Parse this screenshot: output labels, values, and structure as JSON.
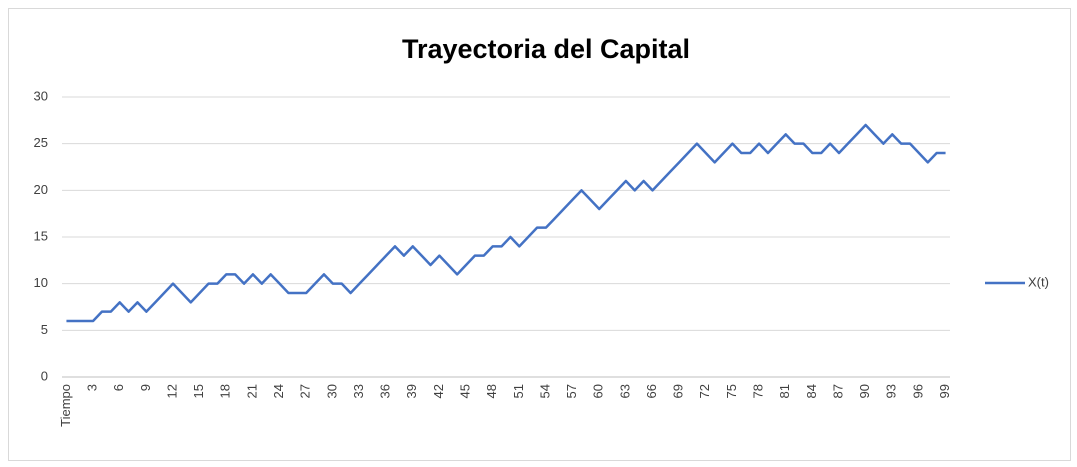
{
  "chart_data": {
    "type": "line",
    "title": "Trayectoria del Capital",
    "categories": [
      "Tiempo",
      null,
      null,
      3,
      null,
      null,
      6,
      null,
      null,
      9,
      null,
      null,
      12,
      null,
      null,
      15,
      null,
      null,
      18,
      null,
      null,
      21,
      null,
      null,
      24,
      null,
      null,
      27,
      null,
      null,
      30,
      null,
      null,
      33,
      null,
      null,
      36,
      null,
      null,
      39,
      null,
      null,
      42,
      null,
      null,
      45,
      null,
      null,
      48,
      null,
      null,
      51,
      null,
      null,
      54,
      null,
      null,
      57,
      null,
      null,
      60,
      null,
      null,
      63,
      null,
      null,
      66,
      null,
      null,
      69,
      null,
      null,
      72,
      null,
      null,
      75,
      null,
      null,
      78,
      null,
      null,
      81,
      null,
      null,
      84,
      null,
      null,
      87,
      null,
      null,
      90,
      null,
      null,
      93,
      null,
      null,
      96,
      null,
      null,
      99
    ],
    "series": [
      {
        "name": "X(t)",
        "color": "#4472c4",
        "values": [
          6,
          6,
          6,
          6,
          7,
          7,
          8,
          7,
          8,
          7,
          8,
          9,
          10,
          9,
          8,
          9,
          10,
          10,
          11,
          11,
          10,
          11,
          10,
          11,
          10,
          9,
          9,
          9,
          10,
          11,
          10,
          10,
          9,
          10,
          11,
          12,
          13,
          14,
          13,
          14,
          13,
          12,
          13,
          12,
          11,
          12,
          13,
          13,
          14,
          14,
          15,
          14,
          15,
          16,
          16,
          17,
          18,
          19,
          20,
          19,
          18,
          19,
          20,
          21,
          20,
          21,
          20,
          21,
          22,
          23,
          24,
          25,
          24,
          23,
          24,
          25,
          24,
          24,
          25,
          24,
          25,
          26,
          25,
          25,
          24,
          24,
          25,
          24,
          25,
          26,
          27,
          26,
          25,
          26,
          25,
          25,
          24,
          23,
          24,
          24
        ]
      }
    ],
    "ylim": [
      0,
      30
    ],
    "yticks": [
      0,
      5,
      10,
      15,
      20,
      25,
      30
    ],
    "grid": true,
    "legend": "right"
  }
}
